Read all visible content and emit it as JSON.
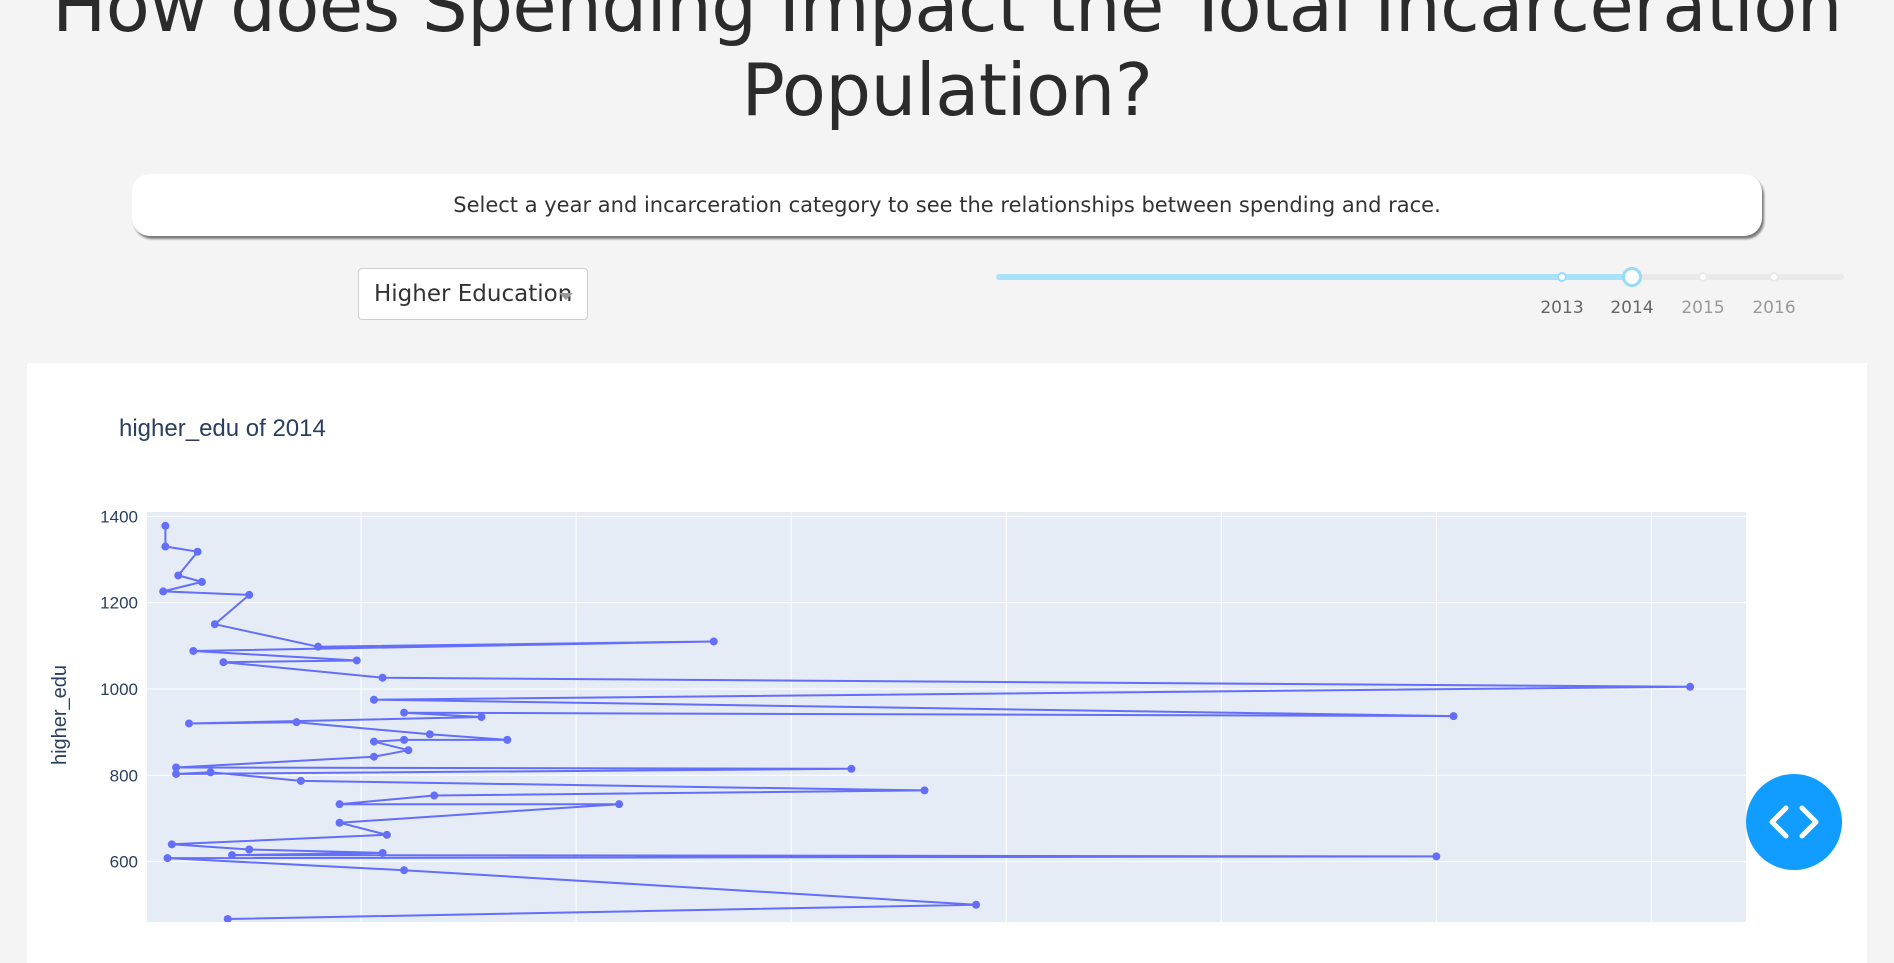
{
  "page": {
    "title": "How does Spending Impact the Total Incarceration Population?",
    "instruction": "Select a year and incarceration category to see the relationships between spending and race."
  },
  "controls": {
    "category_dropdown": {
      "selected": "Higher Education"
    },
    "year_slider": {
      "marks": [
        "2013",
        "2014",
        "2015",
        "2016"
      ],
      "selected": "2014"
    }
  },
  "fab": {
    "icon": "code-icon",
    "color": "#119dff"
  },
  "chart_data": {
    "type": "line",
    "mode": "lines+markers",
    "title": "higher_edu of 2014",
    "ylabel": "higher_edu",
    "xlabel": "",
    "line_color": "#636efa",
    "plot_bg": "#e5ecf6",
    "grid": true,
    "ylim": [
      460,
      1410
    ],
    "xlim": [
      0,
      3.72
    ],
    "yticks": [
      "600",
      "800",
      "1000",
      "1200",
      "1400"
    ],
    "series": [
      {
        "x": [
          0.045,
          0.045,
          0.12,
          0.075,
          0.13,
          0.04,
          0.24,
          0.16,
          0.4,
          1.32,
          0.11,
          0.49,
          0.18,
          0.55,
          3.59,
          0.53,
          3.04,
          0.6,
          0.78,
          0.1,
          0.35,
          0.66,
          0.84,
          0.6,
          0.53,
          0.61,
          0.53,
          0.07,
          1.64,
          0.07,
          0.15,
          0.36,
          1.81,
          0.67,
          0.45,
          1.1,
          0.45,
          0.56,
          0.06,
          0.24,
          0.55,
          0.2,
          3.0,
          0.05,
          0.6,
          1.93,
          0.19
        ],
        "y": [
          1378,
          1330,
          1318,
          1263,
          1248,
          1226,
          1218,
          1150,
          1098,
          1110,
          1088,
          1066,
          1062,
          1026,
          1005,
          975,
          937,
          945,
          935,
          920,
          923,
          895,
          882,
          882,
          878,
          858,
          843,
          818,
          815,
          803,
          807,
          787,
          765,
          753,
          733,
          733,
          690,
          662,
          640,
          628,
          620,
          615,
          612,
          608,
          580,
          500,
          467
        ]
      }
    ]
  }
}
